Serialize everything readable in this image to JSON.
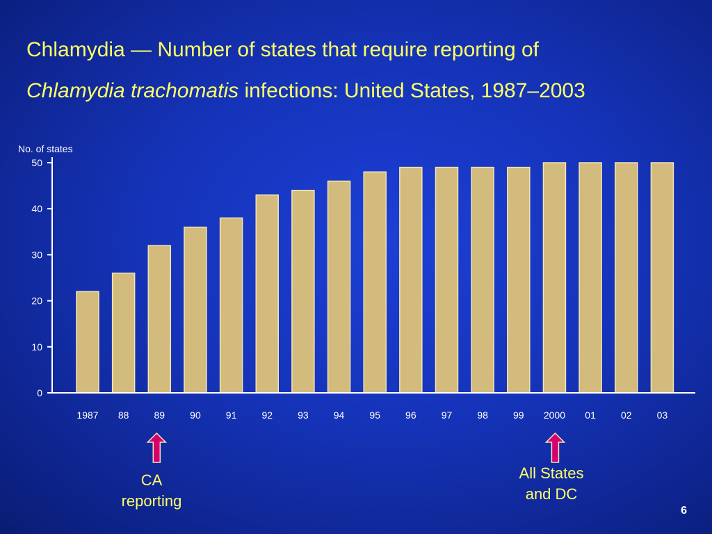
{
  "slide": {
    "title_line1": "Chlamydia — Number of states that require reporting of",
    "title_line2_italic": "Chlamydia trachomatis",
    "title_line2_rest": " infections: United States, 1987–2003",
    "page_number": "6"
  },
  "annotations": [
    {
      "label": "CA\nreporting",
      "category": "89"
    },
    {
      "label": "All States\nand DC",
      "category": "2000"
    }
  ],
  "colors": {
    "bar_fill": "#d2bb7c",
    "bar_edge": "#f4e6b2",
    "axis": "#ffffff",
    "arrow_fill": "#d4006e",
    "arrow_outline": "#f4e6b2",
    "text_accent": "#ffff66"
  },
  "chart_data": {
    "type": "bar",
    "title": "Chlamydia — Number of states that require reporting of Chlamydia trachomatis infections: United States, 1987–2003",
    "xlabel": "",
    "ylabel": "No. of states",
    "categories": [
      "1987",
      "88",
      "89",
      "90",
      "91",
      "92",
      "93",
      "94",
      "95",
      "96",
      "97",
      "98",
      "99",
      "2000",
      "01",
      "02",
      "03"
    ],
    "values": [
      22,
      26,
      32,
      36,
      38,
      43,
      44,
      46,
      48,
      49,
      49,
      49,
      49,
      50,
      50,
      50,
      50
    ],
    "ylim": [
      0,
      50
    ],
    "yticks": [
      0,
      10,
      20,
      30,
      40,
      50
    ],
    "grid": false,
    "legend": "none"
  }
}
